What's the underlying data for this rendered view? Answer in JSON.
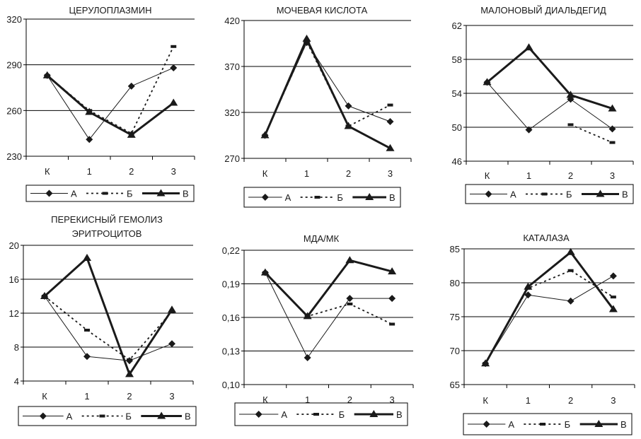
{
  "chart_data": [
    {
      "type": "line",
      "title": "ЦЕРУЛОПЛАЗМИН",
      "categories": [
        "К",
        "1",
        "2",
        "3"
      ],
      "ylim": [
        230,
        320
      ],
      "yticks": [
        "230",
        "260",
        "290",
        "320"
      ],
      "ytick_values": [
        230,
        260,
        290,
        320
      ],
      "grid": true,
      "legend": "bottom",
      "series": [
        {
          "name": "А",
          "values": [
            283,
            241,
            276,
            288
          ]
        },
        {
          "name": "Б",
          "values": [
            283,
            260,
            245,
            302
          ]
        },
        {
          "name": "В",
          "values": [
            283,
            259,
            244,
            265
          ]
        }
      ]
    },
    {
      "type": "line",
      "title": "МОЧЕВАЯ КИСЛОТА",
      "categories": [
        "К",
        "1",
        "2",
        "3"
      ],
      "ylim": [
        270,
        420
      ],
      "yticks": [
        "270",
        "320",
        "370",
        "420"
      ],
      "ytick_values": [
        270,
        320,
        370,
        420
      ],
      "grid": true,
      "legend": "bottom",
      "series": [
        {
          "name": "А",
          "values": [
            295,
            396,
            327,
            310
          ]
        },
        {
          "name": "Б",
          "values": [
            295,
            397,
            305,
            328
          ]
        },
        {
          "name": "В",
          "values": [
            295,
            400,
            305,
            281
          ]
        }
      ]
    },
    {
      "type": "line",
      "title": "МАЛОНОВЫЙ ДИАЛЬДЕГИД",
      "categories": [
        "К",
        "1",
        "2",
        "3"
      ],
      "ylim": [
        46,
        62
      ],
      "yticks": [
        "46",
        "50",
        "54",
        "58",
        "62"
      ],
      "ytick_values": [
        46,
        50,
        54,
        58,
        62
      ],
      "grid": true,
      "legend": "bottom",
      "series": [
        {
          "name": "А",
          "values": [
            55.3,
            49.7,
            53.3,
            49.8
          ]
        },
        {
          "name": "Б",
          "values": [
            null,
            null,
            50.3,
            48.2
          ]
        },
        {
          "name": "В",
          "values": [
            55.3,
            59.4,
            53.8,
            52.2
          ]
        }
      ]
    },
    {
      "type": "line",
      "title": "ПЕРЕКИСНЫЙ ГЕМОЛИЗ ЭРИТРОЦИТОВ",
      "title_lines": [
        "ПЕРЕКИСНЫЙ ГЕМОЛИЗ",
        "ЭРИТРОЦИТОВ"
      ],
      "categories": [
        "К",
        "1",
        "2",
        "3"
      ],
      "ylim": [
        4,
        20
      ],
      "yticks": [
        "4",
        "8",
        "12",
        "16",
        "20"
      ],
      "ytick_values": [
        4,
        8,
        12,
        16,
        20
      ],
      "grid": true,
      "legend": "bottom",
      "series": [
        {
          "name": "А",
          "values": [
            14.0,
            6.9,
            6.4,
            8.4
          ]
        },
        {
          "name": "Б",
          "values": [
            14.0,
            10.0,
            6.5,
            12.2
          ]
        },
        {
          "name": "В",
          "values": [
            14.0,
            18.5,
            4.8,
            12.4
          ]
        }
      ]
    },
    {
      "type": "line",
      "title": "МДА/МК",
      "categories": [
        "К",
        "1",
        "2",
        "3"
      ],
      "ylim": [
        0.1,
        0.22
      ],
      "yticks": [
        "0,10",
        "0,13",
        "0,16",
        "0,19",
        "0,22"
      ],
      "ytick_values": [
        0.1,
        0.13,
        0.16,
        0.19,
        0.22
      ],
      "grid": true,
      "legend": "bottom",
      "series": [
        {
          "name": "А",
          "values": [
            0.2,
            0.124,
            0.177,
            0.177
          ]
        },
        {
          "name": "Б",
          "values": [
            0.2,
            0.161,
            0.172,
            0.154
          ]
        },
        {
          "name": "В",
          "values": [
            0.2,
            0.161,
            0.211,
            0.201
          ]
        }
      ]
    },
    {
      "type": "line",
      "title": "КАТАЛАЗА",
      "categories": [
        "К",
        "1",
        "2",
        "3"
      ],
      "ylim": [
        65,
        85
      ],
      "yticks": [
        "65",
        "70",
        "75",
        "80",
        "85"
      ],
      "ytick_values": [
        65,
        70,
        75,
        80,
        85
      ],
      "grid": true,
      "legend": "bottom",
      "series": [
        {
          "name": "А",
          "values": [
            68.1,
            78.2,
            77.3,
            81.0
          ]
        },
        {
          "name": "Б",
          "values": [
            68.1,
            79.2,
            81.8,
            77.9
          ]
        },
        {
          "name": "В",
          "values": [
            68.1,
            79.4,
            84.5,
            76.1
          ]
        }
      ]
    }
  ]
}
